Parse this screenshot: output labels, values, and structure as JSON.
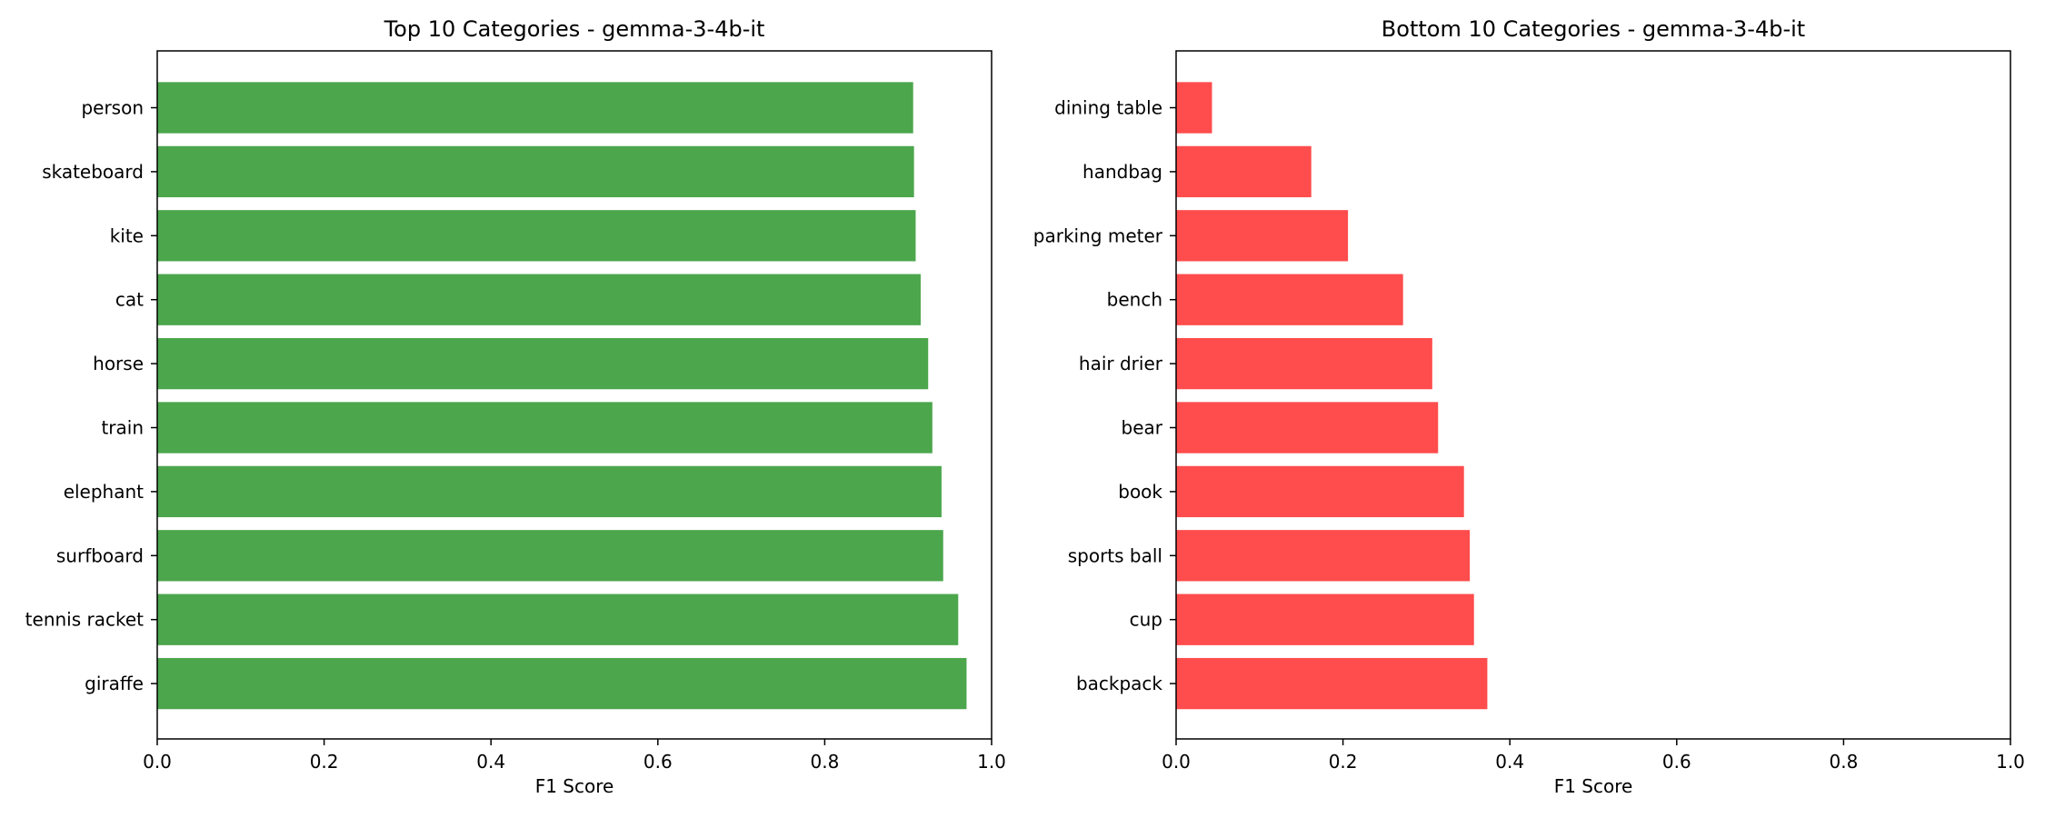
{
  "chart_data": [
    {
      "type": "bar",
      "orientation": "horizontal",
      "title": "Top 10 Categories - gemma-3-4b-it",
      "xlabel": "F1 Score",
      "ylabel": "",
      "xlim": [
        0,
        1.0
      ],
      "xticks": [
        "0.0",
        "0.2",
        "0.4",
        "0.6",
        "0.8",
        "1.0"
      ],
      "color": "#4ca64c",
      "grid": false,
      "categories": [
        "person",
        "skateboard",
        "kite",
        "cat",
        "horse",
        "train",
        "elephant",
        "surfboard",
        "tennis racket",
        "giraffe"
      ],
      "values": [
        0.906,
        0.907,
        0.909,
        0.915,
        0.924,
        0.929,
        0.94,
        0.942,
        0.96,
        0.97
      ]
    },
    {
      "type": "bar",
      "orientation": "horizontal",
      "title": "Bottom 10 Categories - gemma-3-4b-it",
      "xlabel": "F1 Score",
      "ylabel": "",
      "xlim": [
        0,
        1.0
      ],
      "xticks": [
        "0.0",
        "0.2",
        "0.4",
        "0.6",
        "0.8",
        "1.0"
      ],
      "color": "#ff4c4c",
      "grid": false,
      "categories": [
        "dining table",
        "handbag",
        "parking meter",
        "bench",
        "hair drier",
        "bear",
        "book",
        "sports ball",
        "cup",
        "backpack"
      ],
      "values": [
        0.043,
        0.162,
        0.206,
        0.272,
        0.307,
        0.314,
        0.345,
        0.352,
        0.357,
        0.373
      ]
    }
  ]
}
